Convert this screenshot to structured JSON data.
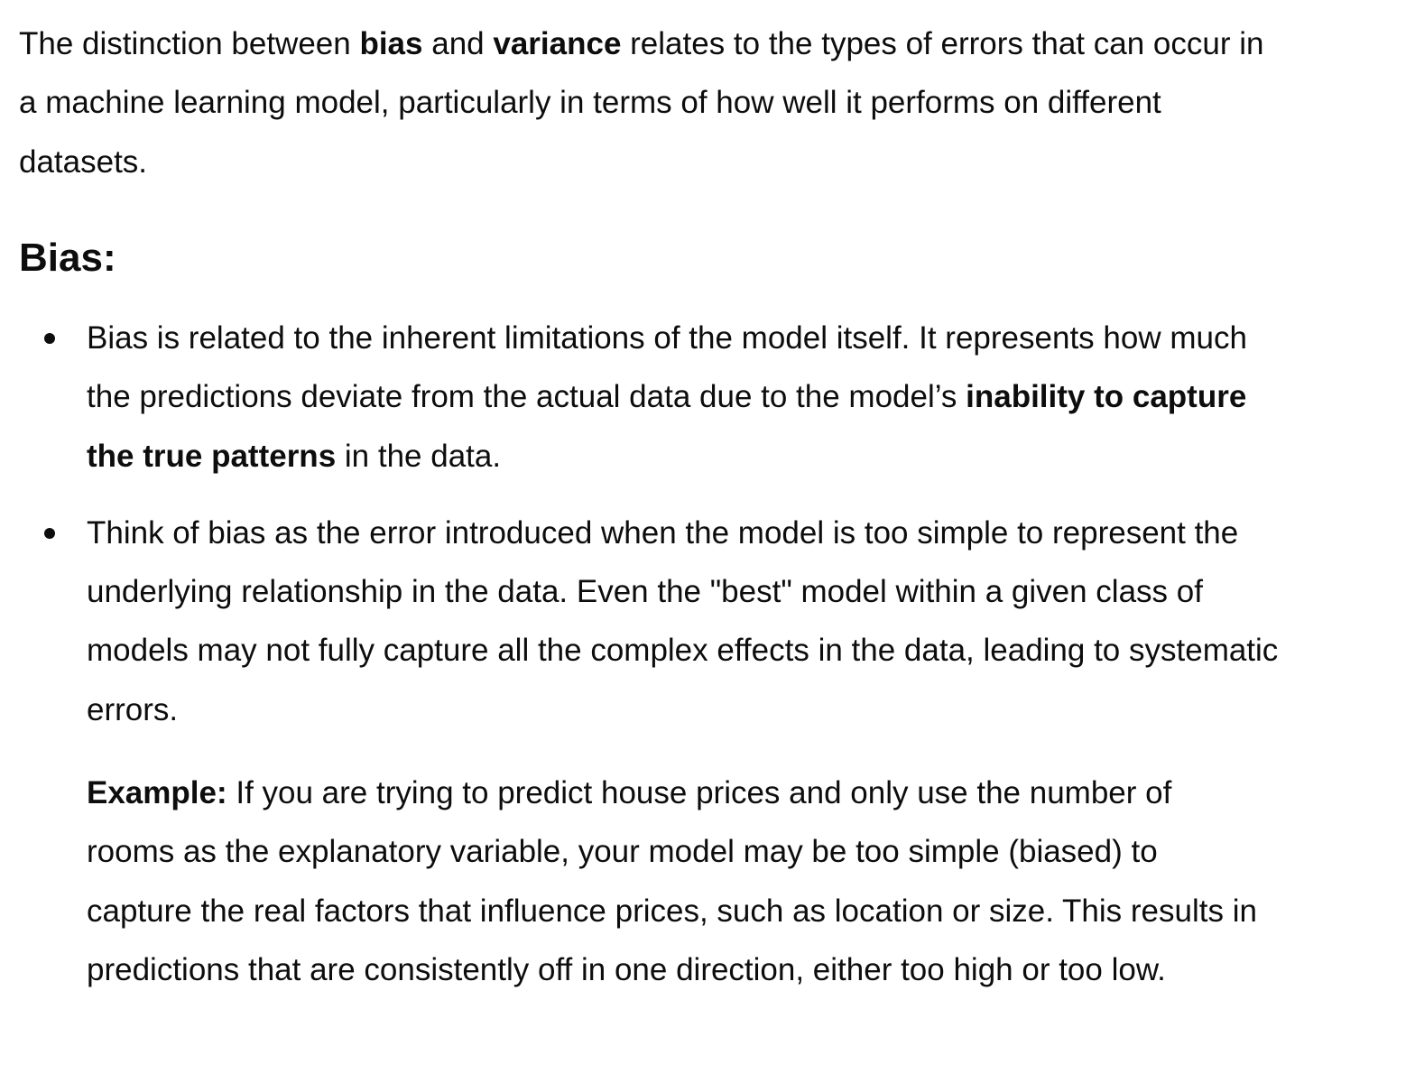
{
  "intro": {
    "t1": "The distinction between ",
    "b1": "bias",
    "t2": " and ",
    "b2": "variance",
    "t3": " relates to the types of errors that can occur in a machine learning model, particularly in terms of how well it performs on different datasets."
  },
  "heading": "Bias:",
  "bullets": [
    {
      "t1": "Bias is related to the inherent limitations of the model itself. It represents how much the predictions deviate from the actual data due to the model’s ",
      "b1": "inability to capture the true patterns",
      "t2": " in the data."
    },
    {
      "t1": "Think of bias as the error introduced when the model is too simple to represent the underlying relationship in the data. Even the \"best\" model within a given class of models may not fully capture all the complex effects in the data, leading to systematic errors."
    }
  ],
  "example": {
    "label": "Example:",
    "text": " If you are trying to predict house prices and only use the number of rooms as the explanatory variable, your model may be too simple (biased) to capture the real factors that influence prices, such as location or size. This results in predictions that are consistently off in one direction, either too high or too low."
  }
}
